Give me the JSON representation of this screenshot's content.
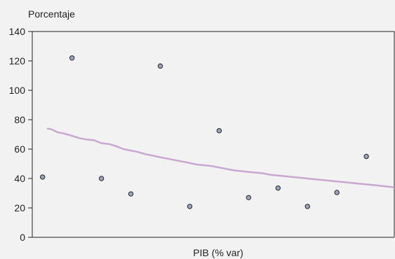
{
  "chart_data": {
    "type": "scatter",
    "ylabel": "Porcentaje",
    "xlabel": "PIB (% var)",
    "ylim": [
      0,
      140
    ],
    "yticks": [
      0,
      20,
      40,
      60,
      80,
      100,
      120,
      140
    ],
    "grid": false,
    "points": [
      {
        "x": 1,
        "y": 41
      },
      {
        "x": 2,
        "y": 122
      },
      {
        "x": 3,
        "y": 40
      },
      {
        "x": 4,
        "y": 29.5
      },
      {
        "x": 5,
        "y": 116.5
      },
      {
        "x": 6,
        "y": 21
      },
      {
        "x": 7,
        "y": 72.5
      },
      {
        "x": 8,
        "y": 27
      },
      {
        "x": 9,
        "y": 33.5
      },
      {
        "x": 10,
        "y": 21
      },
      {
        "x": 11,
        "y": 30.5
      },
      {
        "x": 12,
        "y": 55
      }
    ],
    "xlim": [
      0.65,
      12.95
    ],
    "trend_line": {
      "x": [
        1.15,
        1.3,
        1.5,
        1.75,
        2.0,
        2.25,
        2.5,
        2.75,
        3.0,
        3.25,
        3.5,
        3.75,
        4.0,
        4.25,
        4.5,
        4.75,
        5.0,
        5.25,
        5.5,
        5.75,
        6.0,
        6.25,
        6.5,
        6.75,
        7.0,
        7.25,
        7.5,
        7.75,
        8.0,
        8.25,
        8.5,
        8.75,
        9.0,
        9.25,
        9.5,
        9.75,
        10.0,
        10.25,
        10.5,
        10.75,
        11.0,
        11.25,
        11.5,
        11.75,
        12.0,
        12.25,
        12.5,
        12.75,
        12.95
      ],
      "y": [
        74,
        73.5,
        71.5,
        70.5,
        69,
        67.5,
        66.5,
        66,
        64,
        63.5,
        62,
        60,
        59,
        58,
        56.5,
        55.5,
        54.5,
        53.5,
        52.5,
        51.5,
        50.5,
        49.5,
        49,
        48.5,
        47.5,
        46.5,
        45.5,
        45,
        44.5,
        44,
        43.5,
        42.5,
        42,
        41.5,
        41,
        40.5,
        40,
        39.5,
        39,
        38.5,
        38,
        37.5,
        37,
        36.5,
        36,
        35.5,
        35,
        34.5,
        34
      ],
      "color": "#c8a8d0"
    },
    "colors": {
      "background": "#f2f2f2",
      "point_fill": "#9aa3bd",
      "point_stroke": "#2a2a2a",
      "axis": "#222222"
    }
  }
}
